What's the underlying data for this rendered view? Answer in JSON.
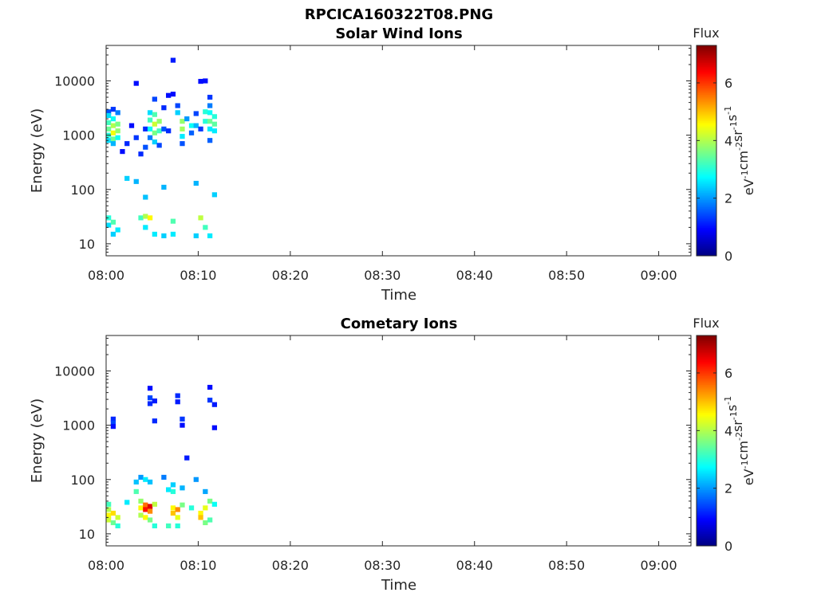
{
  "figure": {
    "title": "RPCICA160322T08.PNG"
  },
  "chart_data": [
    {
      "type": "heatmap",
      "title": "Solar Wind Ions",
      "xlabel": "Time",
      "ylabel": "Energy (eV)",
      "xticks": [
        "08:00",
        "08:10",
        "08:20",
        "08:30",
        "08:40",
        "08:50",
        "09:00"
      ],
      "xlim_minutes": [
        0,
        63.5
      ],
      "yscale": "log",
      "yticks": [
        "10",
        "100",
        "1000",
        "10000"
      ],
      "ylim": [
        6,
        45000
      ],
      "colorbar": {
        "title": "Flux",
        "label": "eV-1cm-2sr-1s-1",
        "ticks": [
          "0",
          "2",
          "4",
          "6"
        ],
        "range": [
          0,
          7.3
        ],
        "colormap": "jet"
      },
      "cells": [
        [
          0,
          2700,
          1.5
        ],
        [
          0,
          2300,
          2.5
        ],
        [
          0,
          1700,
          3.2
        ],
        [
          0,
          1300,
          3.5
        ],
        [
          0,
          1000,
          3.0
        ],
        [
          0,
          800,
          2.5
        ],
        [
          0.5,
          3000,
          1.3
        ],
        [
          0.5,
          2000,
          2.8
        ],
        [
          0.5,
          1500,
          4.0
        ],
        [
          0.5,
          1100,
          4.5
        ],
        [
          0.5,
          850,
          3.5
        ],
        [
          0.5,
          700,
          2.2
        ],
        [
          1,
          2600,
          1.8
        ],
        [
          1,
          1600,
          3.6
        ],
        [
          1,
          1200,
          3.8
        ],
        [
          1,
          900,
          2.8
        ],
        [
          1.5,
          500,
          1.0
        ],
        [
          2,
          700,
          1.2
        ],
        [
          2.5,
          1500,
          1.0
        ],
        [
          3,
          900,
          1.3
        ],
        [
          3,
          9000,
          1.0
        ],
        [
          3.5,
          450,
          1.2
        ],
        [
          4,
          1300,
          1.2
        ],
        [
          4,
          600,
          1.5
        ],
        [
          4.5,
          2600,
          2.5
        ],
        [
          4.5,
          1900,
          3.2
        ],
        [
          4.5,
          1300,
          2.8
        ],
        [
          4.5,
          900,
          1.8
        ],
        [
          5,
          4600,
          1.4
        ],
        [
          5,
          2400,
          3.3
        ],
        [
          5,
          1600,
          4.2
        ],
        [
          5,
          1100,
          3.6
        ],
        [
          5,
          750,
          2.4
        ],
        [
          5.5,
          1800,
          3.8
        ],
        [
          5.5,
          1200,
          3.2
        ],
        [
          5.5,
          650,
          1.4
        ],
        [
          6,
          1300,
          1.5
        ],
        [
          6,
          3200,
          1.2
        ],
        [
          6.5,
          1200,
          1.2
        ],
        [
          6.5,
          5400,
          1.0
        ],
        [
          7,
          5700,
          1.0
        ],
        [
          7,
          24000,
          1.1
        ],
        [
          7.5,
          3500,
          1.4
        ],
        [
          7.5,
          2600,
          2.4
        ],
        [
          8,
          1800,
          3.8
        ],
        [
          8,
          1300,
          3.9
        ],
        [
          8,
          950,
          2.6
        ],
        [
          8,
          700,
          1.5
        ],
        [
          8.5,
          2000,
          2.0
        ],
        [
          9,
          1500,
          2.8
        ],
        [
          9,
          1100,
          1.6
        ],
        [
          9.5,
          1500,
          2.2
        ],
        [
          9.5,
          2500,
          1.4
        ],
        [
          10,
          1300,
          1.3
        ],
        [
          10,
          9800,
          1.0
        ],
        [
          10.5,
          2700,
          3.0
        ],
        [
          10.5,
          1800,
          3.0
        ],
        [
          10.5,
          10000,
          1.0
        ],
        [
          11,
          5000,
          1.3
        ],
        [
          11,
          3500,
          1.8
        ],
        [
          11,
          2600,
          2.8
        ],
        [
          11,
          1800,
          3.5
        ],
        [
          11,
          1300,
          2.6
        ],
        [
          11,
          800,
          1.6
        ],
        [
          11.5,
          2200,
          3.0
        ],
        [
          11.5,
          1600,
          3.4
        ],
        [
          11.5,
          1200,
          2.6
        ],
        [
          0,
          30,
          3.0
        ],
        [
          0,
          22,
          2.5
        ],
        [
          0.5,
          25,
          3.3
        ],
        [
          0.5,
          15,
          2.4
        ],
        [
          1,
          18,
          2.6
        ],
        [
          3.5,
          30,
          3.2
        ],
        [
          4,
          32,
          4.0
        ],
        [
          4.5,
          30,
          4.6
        ],
        [
          4,
          20,
          2.6
        ],
        [
          5,
          15,
          2.6
        ],
        [
          6,
          14,
          2.4
        ],
        [
          7,
          26,
          3.3
        ],
        [
          7,
          15,
          2.6
        ],
        [
          9.5,
          14,
          2.4
        ],
        [
          10,
          30,
          4.1
        ],
        [
          10.5,
          20,
          3.2
        ],
        [
          11,
          14,
          2.6
        ],
        [
          2,
          160,
          2.4
        ],
        [
          3,
          140,
          2.2
        ],
        [
          4,
          72,
          2.3
        ],
        [
          6,
          110,
          2.2
        ],
        [
          9.5,
          130,
          2.2
        ],
        [
          11.5,
          80,
          2.4
        ]
      ]
    },
    {
      "type": "heatmap",
      "title": "Cometary Ions",
      "xlabel": "Time",
      "ylabel": "Energy (eV)",
      "xticks": [
        "08:00",
        "08:10",
        "08:20",
        "08:30",
        "08:40",
        "08:50",
        "09:00"
      ],
      "xlim_minutes": [
        0,
        63.5
      ],
      "yscale": "log",
      "yticks": [
        "10",
        "100",
        "1000",
        "10000"
      ],
      "ylim": [
        6,
        45000
      ],
      "colorbar": {
        "title": "Flux",
        "label": "eV-1cm-2sr-1s-1",
        "ticks": [
          "0",
          "2",
          "4",
          "6"
        ],
        "range": [
          0,
          7.3
        ],
        "colormap": "jet"
      },
      "cells": [
        [
          0.5,
          1300,
          1.2
        ],
        [
          0.5,
          1100,
          1.4
        ],
        [
          0.5,
          950,
          1.0
        ],
        [
          4.5,
          4800,
          1.0
        ],
        [
          4.5,
          3200,
          1.4
        ],
        [
          4.5,
          2500,
          1.2
        ],
        [
          5,
          2800,
          1.1
        ],
        [
          5,
          1200,
          1.2
        ],
        [
          7.5,
          3500,
          1.2
        ],
        [
          7.5,
          2700,
          1.1
        ],
        [
          8,
          1300,
          1.3
        ],
        [
          8,
          1000,
          1.0
        ],
        [
          8.5,
          250,
          1.1
        ],
        [
          11,
          5000,
          1.0
        ],
        [
          11,
          2900,
          1.3
        ],
        [
          11.5,
          2400,
          1.1
        ],
        [
          11.5,
          900,
          1.0
        ],
        [
          0,
          35,
          3.2
        ],
        [
          0,
          28,
          4.0
        ],
        [
          0,
          22,
          4.6
        ],
        [
          0,
          18,
          4.2
        ],
        [
          0.5,
          24,
          4.8
        ],
        [
          0.5,
          16,
          3.5
        ],
        [
          1,
          20,
          4.2
        ],
        [
          1,
          14,
          3.0
        ],
        [
          2,
          38,
          2.6
        ],
        [
          3,
          90,
          2.3
        ],
        [
          3,
          60,
          3.3
        ],
        [
          3.5,
          40,
          3.8
        ],
        [
          3.5,
          30,
          4.6
        ],
        [
          3.5,
          22,
          4.0
        ],
        [
          4,
          34,
          5.6
        ],
        [
          4,
          28,
          6.3
        ],
        [
          4,
          20,
          4.6
        ],
        [
          4.5,
          32,
          6.6
        ],
        [
          4.5,
          26,
          5.4
        ],
        [
          4.5,
          18,
          3.6
        ],
        [
          5,
          35,
          4.1
        ],
        [
          5,
          14,
          3.0
        ],
        [
          6.5,
          65,
          2.6
        ],
        [
          7,
          60,
          3.0
        ],
        [
          7,
          30,
          4.6
        ],
        [
          7,
          24,
          5.0
        ],
        [
          7.5,
          28,
          5.4
        ],
        [
          7.5,
          20,
          4.4
        ],
        [
          6.5,
          14,
          3.2
        ],
        [
          7.5,
          14,
          3.0
        ],
        [
          8,
          34,
          3.6
        ],
        [
          9,
          30,
          3.0
        ],
        [
          10,
          24,
          4.6
        ],
        [
          10,
          20,
          5.0
        ],
        [
          10.5,
          30,
          4.4
        ],
        [
          10.5,
          16,
          3.6
        ],
        [
          11,
          40,
          3.6
        ],
        [
          11,
          18,
          3.3
        ],
        [
          11.5,
          35,
          2.8
        ],
        [
          3.5,
          110,
          2.0
        ],
        [
          4,
          100,
          2.6
        ],
        [
          4.5,
          90,
          2.3
        ],
        [
          6,
          110,
          1.8
        ],
        [
          7,
          80,
          2.4
        ],
        [
          8,
          70,
          2.2
        ],
        [
          9.5,
          100,
          2.0
        ],
        [
          10.5,
          60,
          2.1
        ]
      ]
    }
  ]
}
